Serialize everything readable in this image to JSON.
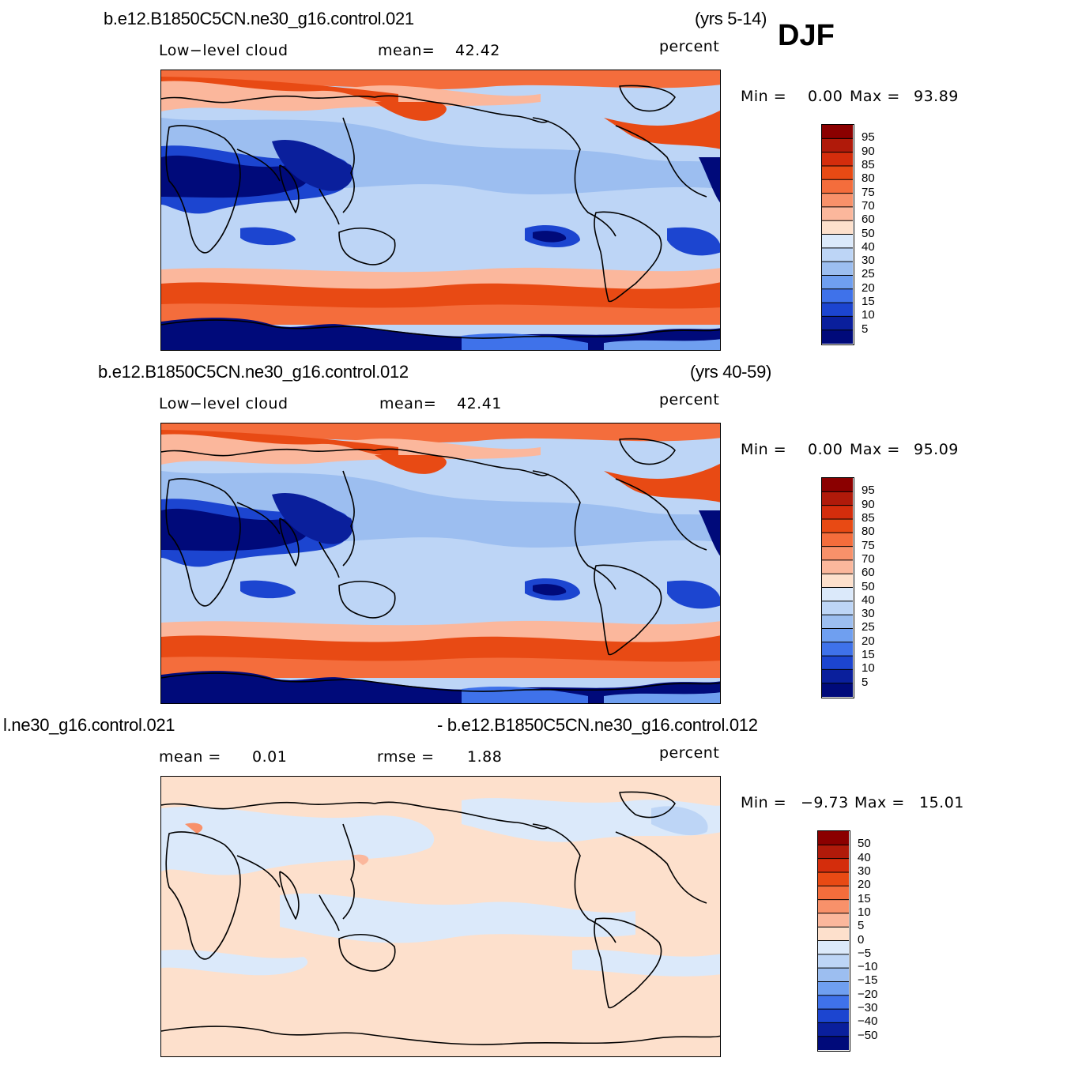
{
  "season": "DJF",
  "panels": [
    {
      "case_title": "b.e12.B1850C5CN.ne30_g16.control.021",
      "years": "(yrs 5-14)",
      "field": "Low−level  cloud",
      "stat1_label": "mean=",
      "stat1_value": "42.42",
      "units": "percent",
      "min_label": "Min  =",
      "min_value": "0.00",
      "max_label": "Max  =",
      "max_value": "93.89"
    },
    {
      "case_title": "b.e12.B1850C5CN.ne30_g16.control.012",
      "years": "(yrs 40-59)",
      "field": "Low−level  cloud",
      "stat1_label": "mean=",
      "stat1_value": "42.41",
      "units": "percent",
      "min_label": "Min  =",
      "min_value": "0.00",
      "max_label": "Max  =",
      "max_value": "95.09"
    },
    {
      "case_title": "l.ne30_g16.control.021",
      "case_title_right": "- b.e12.B1850C5CN.ne30_g16.control.012",
      "stat1_label": "mean  =",
      "stat1_value": "0.01",
      "stat2_label": "rmse  =",
      "stat2_value": "1.88",
      "units": "percent",
      "min_label": "Min  =",
      "min_value": "−9.73",
      "max_label": "Max  =",
      "max_value": "15.01"
    }
  ],
  "chart_data": [
    {
      "type": "heatmap",
      "title": "b.e12.B1850C5CN.ne30_g16.control.021 (yrs 5-14) DJF",
      "variable": "Low-level cloud",
      "units": "percent",
      "mean": 42.42,
      "min": 0.0,
      "max": 93.89,
      "colorbar_levels": [
        95,
        90,
        85,
        80,
        75,
        70,
        60,
        50,
        40,
        30,
        25,
        20,
        15,
        10,
        5
      ],
      "colorbar_colors": [
        "#8b0000",
        "#b01a0a",
        "#d42d0c",
        "#e84a14",
        "#f46d3c",
        "#f8916a",
        "#fbb79c",
        "#fde0cc",
        "#dbe9fa",
        "#bdd5f6",
        "#9cbef0",
        "#6f9ff0",
        "#3f72ea",
        "#1c45d0",
        "#0a1f9c",
        "#000a7a"
      ]
    },
    {
      "type": "heatmap",
      "title": "b.e12.B1850C5CN.ne30_g16.control.012 (yrs 40-59) DJF",
      "variable": "Low-level cloud",
      "units": "percent",
      "mean": 42.41,
      "min": 0.0,
      "max": 95.09,
      "colorbar_levels": [
        95,
        90,
        85,
        80,
        75,
        70,
        60,
        50,
        40,
        30,
        25,
        20,
        15,
        10,
        5
      ],
      "colorbar_colors": [
        "#8b0000",
        "#b01a0a",
        "#d42d0c",
        "#e84a14",
        "#f46d3c",
        "#f8916a",
        "#fbb79c",
        "#fde0cc",
        "#dbe9fa",
        "#bdd5f6",
        "#9cbef0",
        "#6f9ff0",
        "#3f72ea",
        "#1c45d0",
        "#0a1f9c",
        "#000a7a"
      ]
    },
    {
      "type": "heatmap",
      "title": "difference (control.021 - control.012) DJF",
      "variable": "Low-level cloud",
      "units": "percent",
      "mean": 0.01,
      "rmse": 1.88,
      "min": -9.73,
      "max": 15.01,
      "colorbar_levels": [
        "50",
        "40",
        "30",
        "20",
        "15",
        "10",
        "5",
        "0",
        "−5",
        "−10",
        "−15",
        "−20",
        "−30",
        "−40",
        "−50"
      ],
      "colorbar_colors": [
        "#8b0000",
        "#b01a0a",
        "#d42d0c",
        "#e84a14",
        "#f46d3c",
        "#f8916a",
        "#fbb79c",
        "#fde0cc",
        "#dbe9fa",
        "#bdd5f6",
        "#9cbef0",
        "#6f9ff0",
        "#3f72ea",
        "#1c45d0",
        "#0a1f9c",
        "#000a7a"
      ]
    }
  ]
}
